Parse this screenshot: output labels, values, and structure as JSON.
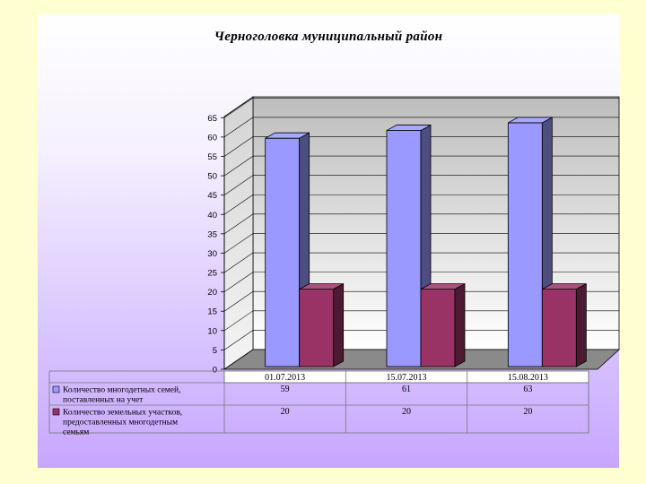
{
  "chart_data": {
    "type": "bar",
    "title": "Черноголовка муниципальный  район",
    "categories": [
      "01.07.2013",
      "15.07.2013",
      "15.08.2013"
    ],
    "series": [
      {
        "name": "Количество многодетных семей, поставленных на учет",
        "name_lines": [
          "Количество многодетных семей,",
          "поставленных на учет"
        ],
        "values": [
          59,
          61,
          63
        ],
        "labels": [
          "59",
          "61",
          "63"
        ],
        "color": "#9999ff"
      },
      {
        "name": "Количество земельных участков, предоставленных многодетным семьям",
        "name_lines": [
          "Количество земельных участков,",
          "предоставленных многодетным",
          "семьям"
        ],
        "values": [
          20,
          20,
          20
        ],
        "labels": [
          "20",
          "20",
          "20"
        ],
        "color": "#993366"
      }
    ],
    "ylim": [
      0,
      65
    ],
    "yticks": [
      "0",
      "5",
      "10",
      "15",
      "20",
      "25",
      "30",
      "35",
      "40",
      "45",
      "50",
      "55",
      "60",
      "65"
    ],
    "grid": true,
    "legend": "data-table"
  }
}
